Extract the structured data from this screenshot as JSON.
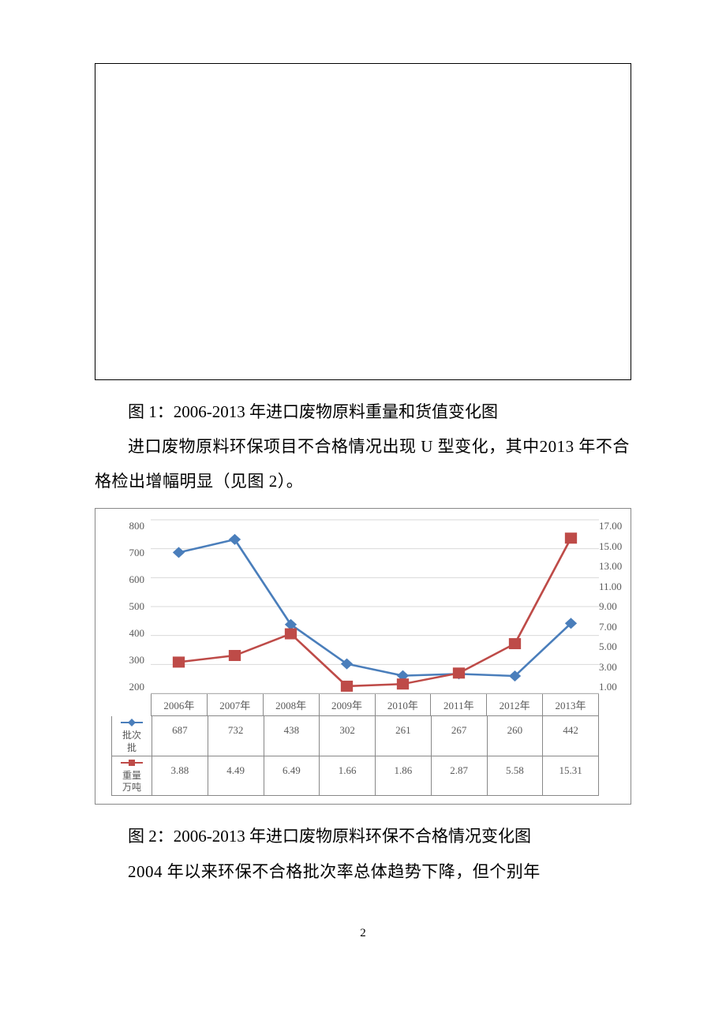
{
  "figure1": {
    "caption": "图 1：2006-2013 年进口废物原料重量和货值变化图"
  },
  "paragraph1": "进口废物原料环保项目不合格情况出现 U 型变化，其中2013 年不合格检出增幅明显（见图 2）。",
  "chart": {
    "type": "line-dual-axis-with-table",
    "categories": [
      "2006年",
      "2007年",
      "2008年",
      "2009年",
      "2010年",
      "2011年",
      "2012年",
      "2013年"
    ],
    "left_axis": {
      "min": 200,
      "max": 800,
      "step": 100,
      "ticks": [
        "800",
        "700",
        "600",
        "500",
        "400",
        "300",
        "200"
      ]
    },
    "right_axis": {
      "min": 1.0,
      "max": 17.0,
      "step": 2.0,
      "ticks": [
        "17.00",
        "15.00",
        "13.00",
        "11.00",
        "9.00",
        "7.00",
        "5.00",
        "3.00",
        "1.00"
      ]
    },
    "series1": {
      "name": "批次批",
      "legend_top": "批次",
      "legend_bottom": "批",
      "color": "#4a7ebb",
      "marker": "diamond",
      "axis": "left",
      "values": [
        687,
        732,
        438,
        302,
        261,
        267,
        260,
        442
      ]
    },
    "series2": {
      "name": "重量万吨",
      "legend_top": "重量",
      "legend_bottom": "万吨",
      "color": "#be4b48",
      "marker": "square",
      "axis": "right",
      "values": [
        3.88,
        4.49,
        6.49,
        1.66,
        1.86,
        2.87,
        5.58,
        15.31
      ]
    },
    "line_width": 2.5,
    "marker_size": 7,
    "grid_color": "#d9d9d9",
    "border_color": "#888888",
    "text_color": "#595959",
    "background": "#ffffff"
  },
  "figure2": {
    "caption": "图 2：2006-2013 年进口废物原料环保不合格情况变化图"
  },
  "paragraph2": "2004 年以来环保不合格批次率总体趋势下降，但个别年",
  "page_number": "2"
}
